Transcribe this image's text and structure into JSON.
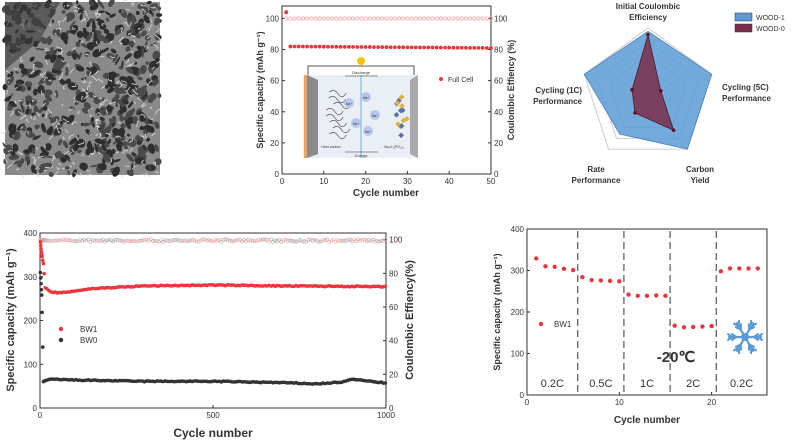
{
  "colors": {
    "red": "#e8383d",
    "red_light": "#f4a0a2",
    "dark": "#333333",
    "blue": "#5b9bd5",
    "maroon": "#7a2e4a",
    "snow": "#5b9bd5"
  },
  "sem_image": {
    "icon": "sem-micrograph"
  },
  "chart_data": [
    {
      "id": "full_cell",
      "type": "scatter",
      "xlabel": "Cycle number",
      "ylabel": "Specific capacity (mAh g⁻¹)",
      "ylabel_right": "Coulombic Effiency (%)",
      "xlim": [
        0,
        50
      ],
      "ylim": [
        0,
        108
      ],
      "ylim_right": [
        0,
        108
      ],
      "xticks": [
        0,
        10,
        20,
        30,
        40,
        50
      ],
      "yticks": [
        0,
        20,
        40,
        60,
        80,
        100
      ],
      "yticks_right": [
        0,
        20,
        40,
        60,
        80,
        100
      ],
      "legend": [
        "Full Cell"
      ],
      "legend_position": "right-middle",
      "capacity": {
        "first": [
          1,
          104
        ],
        "start": 82,
        "end": 81,
        "x_range": [
          2,
          50
        ]
      },
      "ce": {
        "value": 100,
        "x_range": [
          1,
          50
        ]
      },
      "inset": {
        "discharge": "Discharge",
        "charge": "Charge",
        "ion": "Na⁺",
        "anode": "Hard carbon",
        "cathode": "Na₃V₂(PO₄)₃"
      }
    },
    {
      "id": "radar",
      "type": "radar",
      "axes": [
        "Initial Coulombic Efficiency",
        "Cycling (5C) Performance",
        "Carbon Yield",
        "Rate Performance",
        "Cycling (1C) Performance"
      ],
      "axes_lines": [
        [
          "Initial Coulombic",
          "Efficiency"
        ],
        [
          "Cycling (5C)",
          "Performance"
        ],
        [
          "Carbon",
          "Yield"
        ],
        [
          "Rate",
          "Performance"
        ],
        [
          "Cycling (1C)",
          "Performance"
        ]
      ],
      "series": [
        {
          "name": "WOOD-1",
          "values": [
            0.95,
            1.0,
            1.0,
            0.72,
            1.0
          ]
        },
        {
          "name": "WOOD-0",
          "values": [
            0.9,
            0.2,
            0.65,
            0.33,
            0.25
          ]
        }
      ],
      "legend_position": "top-right"
    },
    {
      "id": "long_cycle",
      "type": "scatter",
      "xlabel": "Cycle number",
      "ylabel": "Specific capacity (mAh g⁻¹)",
      "ylabel_right": "Coulombic Effiency(%)",
      "xlim": [
        0,
        1000
      ],
      "ylim": [
        0,
        400
      ],
      "ylim_right": [
        0,
        104
      ],
      "xticks": [
        0,
        500,
        1000
      ],
      "yticks": [
        0,
        100,
        200,
        300,
        400
      ],
      "yticks_right": [
        0,
        20,
        40,
        60,
        80,
        100
      ],
      "legend": [
        "BW1",
        "BW0"
      ],
      "legend_position": "left-middle",
      "series": [
        {
          "name": "BW1",
          "points": [
            [
              1,
              380
            ],
            [
              5,
              350
            ],
            [
              10,
              330
            ],
            [
              15,
              275
            ],
            [
              30,
              265
            ],
            [
              60,
              263
            ],
            [
              150,
              273
            ],
            [
              300,
              279
            ],
            [
              500,
              281
            ],
            [
              700,
              279
            ],
            [
              900,
              278
            ],
            [
              1000,
              277
            ]
          ]
        },
        {
          "name": "BW0",
          "points": [
            [
              1,
              310
            ],
            [
              5,
              258
            ],
            [
              10,
              60
            ],
            [
              30,
              66
            ],
            [
              100,
              64
            ],
            [
              300,
              61
            ],
            [
              500,
              61
            ],
            [
              700,
              58
            ],
            [
              800,
              55
            ],
            [
              880,
              60
            ],
            [
              900,
              66
            ],
            [
              1000,
              57
            ]
          ]
        }
      ],
      "ce": {
        "value": 99.5
      }
    },
    {
      "id": "rate",
      "type": "scatter",
      "xlabel": "Cycle number",
      "ylabel": "Specific capacity (mAh g⁻¹)",
      "xlim": [
        0,
        26
      ],
      "ylim": [
        0,
        400
      ],
      "xticks": [
        0,
        10,
        20
      ],
      "yticks": [
        0,
        100,
        200,
        300,
        400
      ],
      "legend": [
        "BW1"
      ],
      "x": [
        1,
        2,
        3,
        4,
        5,
        6,
        7,
        8,
        9,
        10,
        11,
        12,
        13,
        14,
        15,
        16,
        17,
        18,
        19,
        20,
        21,
        22,
        23,
        24,
        25
      ],
      "values": [
        329,
        310,
        309,
        304,
        301,
        284,
        277,
        276,
        275,
        274,
        242,
        239,
        239,
        240,
        239,
        167,
        163,
        164,
        165,
        166,
        298,
        305,
        305,
        305,
        305
      ],
      "segments": [
        "0.2C",
        "0.5C",
        "1C",
        "2C",
        "0.2C"
      ],
      "dividers": [
        5.5,
        10.5,
        15.5,
        20.5
      ],
      "annotation": "-20℃",
      "icon": "snowflake"
    }
  ]
}
